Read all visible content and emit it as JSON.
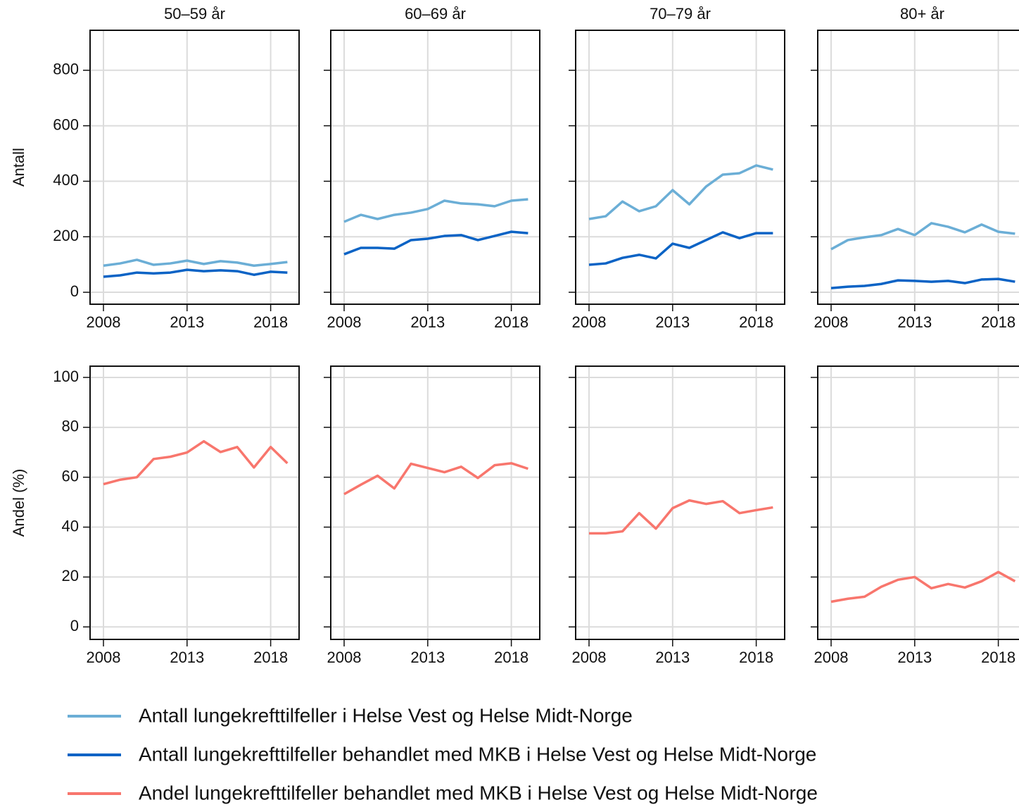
{
  "chart_data": [
    {
      "type": "line",
      "title": "50–59 år",
      "ylabel": "Antall",
      "x": [
        2008,
        2009,
        2010,
        2011,
        2012,
        2013,
        2014,
        2015,
        2016,
        2017,
        2018,
        2019
      ],
      "xlim": [
        2007.2,
        2019.7
      ],
      "xticks": [
        2008,
        2013,
        2018
      ],
      "ylim": [
        -43,
        944
      ],
      "yticks": [
        0,
        200,
        400,
        600,
        800
      ],
      "grid": true,
      "series": [
        {
          "name": "Antall lungekrefttilfeller i Helse Vest og Helse Midt-Norge",
          "color": "#6baed6",
          "values": [
            96,
            104,
            117,
            99,
            104,
            114,
            102,
            112,
            107,
            96,
            102,
            109
          ]
        },
        {
          "name": "Antall lungekrefttilfeller behandlet med MKB i Helse Vest og Helse Midt-Norge",
          "color": "#0b63c5",
          "values": [
            56,
            61,
            71,
            68,
            71,
            81,
            76,
            79,
            76,
            63,
            74,
            71
          ]
        }
      ]
    },
    {
      "type": "line",
      "title": "60–69 år",
      "x": [
        2008,
        2009,
        2010,
        2011,
        2012,
        2013,
        2014,
        2015,
        2016,
        2017,
        2018,
        2019
      ],
      "xlim": [
        2007.2,
        2019.7
      ],
      "xticks": [
        2008,
        2013,
        2018
      ],
      "ylim": [
        -43,
        944
      ],
      "yticks": [
        0,
        200,
        400,
        600,
        800
      ],
      "grid": true,
      "series": [
        {
          "color": "#6baed6",
          "values": [
            254,
            279,
            264,
            279,
            287,
            300,
            330,
            320,
            317,
            310,
            330,
            335
          ]
        },
        {
          "color": "#0b63c5",
          "values": [
            137,
            160,
            160,
            157,
            188,
            193,
            203,
            206,
            188,
            203,
            218,
            213
          ]
        }
      ]
    },
    {
      "type": "line",
      "title": "70–79 år",
      "x": [
        2008,
        2009,
        2010,
        2011,
        2012,
        2013,
        2014,
        2015,
        2016,
        2017,
        2018,
        2019
      ],
      "xlim": [
        2007.2,
        2019.7
      ],
      "xticks": [
        2008,
        2013,
        2018
      ],
      "ylim": [
        -43,
        944
      ],
      "yticks": [
        0,
        200,
        400,
        600,
        800
      ],
      "grid": true,
      "series": [
        {
          "color": "#6baed6",
          "values": [
            264,
            274,
            327,
            292,
            310,
            368,
            317,
            381,
            424,
            429,
            457,
            442
          ]
        },
        {
          "color": "#0b63c5",
          "values": [
            99,
            104,
            124,
            135,
            122,
            175,
            160,
            188,
            216,
            195,
            213,
            213
          ]
        }
      ]
    },
    {
      "type": "line",
      "title": "80+ år",
      "x": [
        2008,
        2009,
        2010,
        2011,
        2012,
        2013,
        2014,
        2015,
        2016,
        2017,
        2018,
        2019
      ],
      "xlim": [
        2007.2,
        2019.7
      ],
      "xticks": [
        2008,
        2013,
        2018
      ],
      "ylim": [
        -43,
        944
      ],
      "yticks": [
        0,
        200,
        400,
        600,
        800
      ],
      "grid": true,
      "series": [
        {
          "color": "#6baed6",
          "values": [
            155,
            188,
            198,
            206,
            228,
            206,
            249,
            236,
            216,
            244,
            218,
            211
          ]
        },
        {
          "color": "#0b63c5",
          "values": [
            15,
            20,
            23,
            30,
            43,
            41,
            38,
            41,
            33,
            46,
            48,
            38
          ]
        }
      ]
    },
    {
      "type": "line",
      "ylabel": "Andel (%)",
      "x": [
        2008,
        2009,
        2010,
        2011,
        2012,
        2013,
        2014,
        2015,
        2016,
        2017,
        2018,
        2019
      ],
      "xlim": [
        2007.2,
        2019.7
      ],
      "xticks": [
        2008,
        2013,
        2018
      ],
      "ylim": [
        -5,
        104.5
      ],
      "yticks": [
        0,
        20,
        40,
        60,
        80,
        100
      ],
      "grid": true,
      "series": [
        {
          "name": "Andel lungekrefttilfeller behandlet med MKB i Helse Vest og Helse Midt-Norge",
          "color": "#f8766d",
          "values": [
            57.2,
            59,
            60,
            67.3,
            68.2,
            69.9,
            74.4,
            70.1,
            72.1,
            63.9,
            72.1,
            65.6
          ]
        }
      ]
    },
    {
      "type": "line",
      "x": [
        2008,
        2009,
        2010,
        2011,
        2012,
        2013,
        2014,
        2015,
        2016,
        2017,
        2018,
        2019
      ],
      "xlim": [
        2007.2,
        2019.7
      ],
      "xticks": [
        2008,
        2013,
        2018
      ],
      "ylim": [
        -5,
        104.5
      ],
      "yticks": [
        0,
        20,
        40,
        60,
        80,
        100
      ],
      "grid": true,
      "series": [
        {
          "color": "#f8766d",
          "values": [
            53.2,
            57,
            60.6,
            55.5,
            65.4,
            63.7,
            62,
            64.2,
            59.7,
            64.8,
            65.6,
            63.4
          ]
        }
      ]
    },
    {
      "type": "line",
      "x": [
        2008,
        2009,
        2010,
        2011,
        2012,
        2013,
        2014,
        2015,
        2016,
        2017,
        2018,
        2019
      ],
      "xlim": [
        2007.2,
        2019.7
      ],
      "xticks": [
        2008,
        2013,
        2018
      ],
      "ylim": [
        -5,
        104.5
      ],
      "yticks": [
        0,
        20,
        40,
        60,
        80,
        100
      ],
      "grid": true,
      "series": [
        {
          "color": "#f8766d",
          "values": [
            37.5,
            37.5,
            38.3,
            45.6,
            39.4,
            47.6,
            50.7,
            49.3,
            50.4,
            45.6,
            46.8,
            47.9
          ]
        }
      ]
    },
    {
      "type": "line",
      "x": [
        2008,
        2009,
        2010,
        2011,
        2012,
        2013,
        2014,
        2015,
        2016,
        2017,
        2018,
        2019
      ],
      "xlim": [
        2007.2,
        2019.7
      ],
      "xticks": [
        2008,
        2013,
        2018
      ],
      "ylim": [
        -5,
        104.5
      ],
      "yticks": [
        0,
        20,
        40,
        60,
        80,
        100
      ],
      "grid": true,
      "series": [
        {
          "color": "#f8766d",
          "values": [
            10.1,
            11.3,
            12.1,
            16.1,
            18.9,
            20,
            15.5,
            17.2,
            15.8,
            18.3,
            22,
            18.3
          ]
        }
      ]
    }
  ]
}
